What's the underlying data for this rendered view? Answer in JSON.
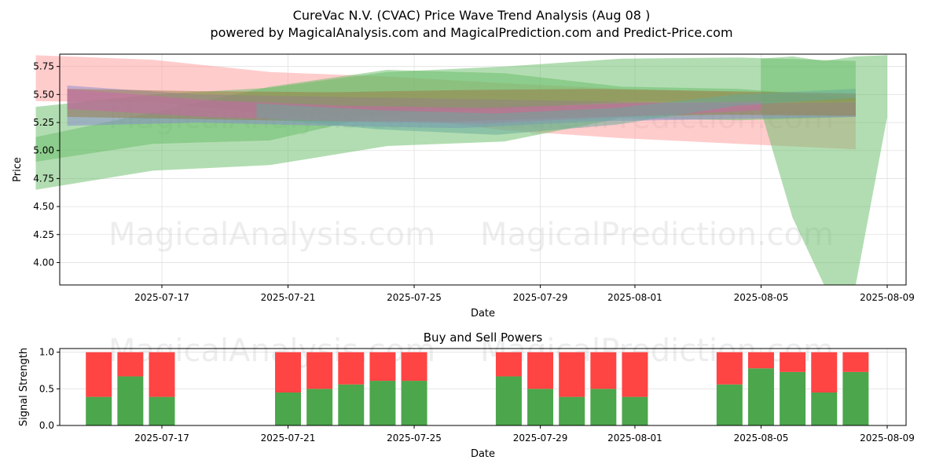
{
  "header": {
    "title": "CureVac N.V. (CVAC) Price Wave Trend Analysis (Aug 08 )",
    "subtitle": "powered by MagicalAnalysis.com and MagicalPrediction.com and Predict-Price.com"
  },
  "watermarks": [
    "MagicalAnalysis.com",
    "MagicalPrediction.com"
  ],
  "chart_data": [
    {
      "type": "area",
      "xlabel": "Date",
      "ylabel": "Price",
      "ylim": [
        3.8,
        5.86
      ],
      "yticks": [
        4.0,
        4.25,
        4.5,
        4.75,
        5.0,
        5.25,
        5.5,
        5.75
      ],
      "xticks": [
        "2025-07-17",
        "2025-07-21",
        "2025-07-25",
        "2025-07-29",
        "2025-08-01",
        "2025-08-05",
        "2025-08-09"
      ],
      "grid": true,
      "bands": [
        {
          "color": "#ff9999",
          "start": "2025-07-13",
          "end": "2025-08-08",
          "upper": [
            5.85,
            5.81,
            5.7,
            5.66,
            5.6,
            5.55,
            5.52,
            5.5
          ],
          "lower": [
            5.44,
            5.43,
            5.33,
            5.31,
            5.18,
            5.11,
            5.06,
            5.01
          ]
        },
        {
          "color": "#66bb66",
          "start": "2025-07-13",
          "end": "2025-08-08",
          "upper": [
            5.39,
            5.5,
            5.56,
            5.7,
            5.75,
            5.82,
            5.83,
            5.8
          ],
          "lower": [
            4.65,
            4.82,
            4.87,
            5.04,
            5.08,
            5.29,
            5.27,
            5.3
          ]
        },
        {
          "color": "#66bb66",
          "start": "2025-07-13",
          "end": "2025-08-08",
          "upper": [
            5.12,
            5.34,
            5.57,
            5.72,
            5.69,
            5.57,
            5.55,
            5.47
          ],
          "lower": [
            4.9,
            5.06,
            5.09,
            5.33,
            5.37,
            5.44,
            5.43,
            5.44
          ]
        },
        {
          "color": "#66bb66",
          "start": "2025-08-05",
          "end": "2025-08-09",
          "upper": [
            5.82,
            5.84,
            5.8,
            5.84,
            5.85
          ],
          "lower": [
            5.35,
            4.4,
            3.8,
            3.8,
            5.3
          ]
        },
        {
          "color": "#8888cc",
          "start": "2025-07-14",
          "end": "2025-08-08",
          "upper": [
            5.58,
            5.5,
            5.48,
            5.46,
            5.44,
            5.42,
            5.43
          ],
          "lower": [
            5.22,
            5.25,
            5.22,
            5.2,
            5.26,
            5.28,
            5.3
          ]
        },
        {
          "color": "#9a7a44",
          "start": "2025-07-14",
          "end": "2025-08-08",
          "upper": [
            5.55,
            5.53,
            5.52,
            5.54,
            5.55,
            5.53,
            5.51
          ],
          "lower": [
            5.3,
            5.28,
            5.26,
            5.26,
            5.3,
            5.32,
            5.31
          ]
        },
        {
          "color": "#cc66aa",
          "start": "2025-07-14",
          "end": "2025-08-05",
          "upper": [
            5.55,
            5.45,
            5.4,
            5.38,
            5.42,
            5.44
          ],
          "lower": [
            5.37,
            5.3,
            5.26,
            5.24,
            5.3,
            5.36
          ]
        },
        {
          "color": "#66aa99",
          "start": "2025-07-20",
          "end": "2025-08-08",
          "upper": [
            5.42,
            5.36,
            5.33,
            5.38,
            5.5,
            5.55
          ],
          "lower": [
            5.29,
            5.19,
            5.14,
            5.23,
            5.4,
            5.47
          ]
        }
      ]
    },
    {
      "type": "bar",
      "title": "Buy and Sell Powers",
      "xlabel": "Date",
      "ylabel": "Signal Strength",
      "ylim": [
        0,
        1.05
      ],
      "yticks": [
        0.0,
        0.5,
        1.0
      ],
      "xticks": [
        "2025-07-17",
        "2025-07-21",
        "2025-07-25",
        "2025-07-29",
        "2025-08-01",
        "2025-08-05",
        "2025-08-09"
      ],
      "grid": true,
      "colors": {
        "buy": "#4ca64c",
        "sell": "#ff4444"
      },
      "categories": [
        "2025-07-15",
        "2025-07-16",
        "2025-07-17",
        "2025-07-21",
        "2025-07-22",
        "2025-07-23",
        "2025-07-24",
        "2025-07-25",
        "2025-07-28",
        "2025-07-29",
        "2025-07-30",
        "2025-07-31",
        "2025-08-01",
        "2025-08-04",
        "2025-08-05",
        "2025-08-06",
        "2025-08-07",
        "2025-08-08"
      ],
      "series": [
        {
          "values": [
            0.39,
            0.67,
            0.39,
            0.45,
            0.5,
            0.56,
            0.61,
            0.61,
            0.67,
            0.5,
            0.39,
            0.5,
            0.39,
            0.56,
            0.78,
            0.73,
            0.45,
            0.73
          ]
        },
        {
          "values": [
            0.61,
            0.33,
            0.61,
            0.55,
            0.5,
            0.44,
            0.39,
            0.39,
            0.33,
            0.5,
            0.61,
            0.5,
            0.61,
            0.44,
            0.22,
            0.27,
            0.55,
            0.27
          ]
        }
      ]
    }
  ]
}
